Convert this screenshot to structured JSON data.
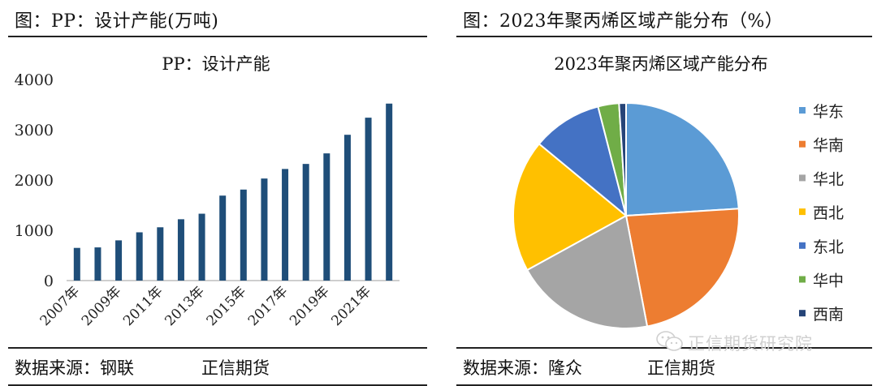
{
  "left": {
    "header": "图：PP：设计产能(万吨)",
    "footer_source": "数据来源：钢联",
    "footer_org": "正信期货"
  },
  "right": {
    "header": "图：2023年聚丙烯区域产能分布（%）",
    "footer_source": "数据来源：隆众",
    "footer_org": "正信期货"
  },
  "watermark": {
    "text": "正信期货研究院",
    "icon": "wechat-icon"
  },
  "chart_data": [
    {
      "type": "bar",
      "title": "PP：设计产能",
      "categories": [
        "2007年",
        "2008年",
        "2009年",
        "2010年",
        "2011年",
        "2012年",
        "2013年",
        "2014年",
        "2015年",
        "2016年",
        "2017年",
        "2018年",
        "2019年",
        "2020年",
        "2021年",
        "2022年"
      ],
      "tick_labels": [
        "2007年",
        "2009年",
        "2011年",
        "2013年",
        "2015年",
        "2017年",
        "2019年",
        "2021年"
      ],
      "values": [
        650,
        660,
        800,
        960,
        1060,
        1220,
        1330,
        1690,
        1810,
        2030,
        2220,
        2320,
        2530,
        2900,
        3240,
        3520
      ],
      "yticks": [
        0,
        1000,
        2000,
        3000,
        4000
      ],
      "ylim": [
        0,
        4000
      ],
      "grid": false,
      "color": "#1f4e79"
    },
    {
      "type": "pie",
      "title": "2023年聚丙烯区域产能分布",
      "legend_position": "right",
      "labels": [
        "华东",
        "华南",
        "华北",
        "西北",
        "东北",
        "华中",
        "西南"
      ],
      "values": [
        24,
        23,
        20,
        19,
        10,
        3,
        1
      ],
      "colors": [
        "#5b9bd5",
        "#ed7d31",
        "#a5a5a5",
        "#ffc000",
        "#4472c4",
        "#70ad47",
        "#264478"
      ]
    }
  ]
}
